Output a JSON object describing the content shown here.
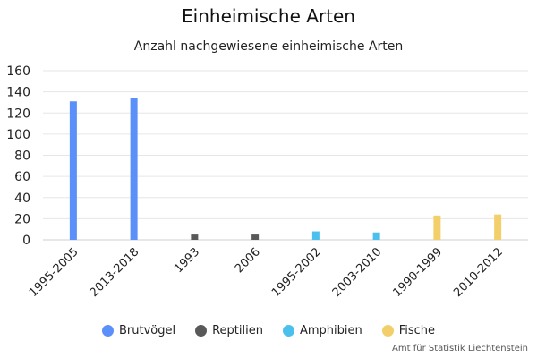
{
  "chart_data": {
    "type": "bar",
    "title": "Einheimische Arten",
    "subtitle": "Anzahl nachgewiesene einheimische Arten",
    "categories": [
      "1995-2005",
      "2013-2018",
      "1993",
      "2006",
      "1995-2002",
      "2003-2010",
      "1990-1999",
      "2010-2012"
    ],
    "ylim": [
      0,
      160
    ],
    "yticks": [
      0,
      20,
      40,
      60,
      80,
      100,
      120,
      140,
      160
    ],
    "grid": true,
    "legend_position": "bottom",
    "series": [
      {
        "name": "Brutvögel",
        "color": "#5b8ff9",
        "points": [
          {
            "category": "1995-2005",
            "value": 131
          },
          {
            "category": "2013-2018",
            "value": 134
          }
        ]
      },
      {
        "name": "Reptilien",
        "color": "#595959",
        "points": [
          {
            "category": "1993",
            "value": 5
          },
          {
            "category": "2006",
            "value": 5
          }
        ]
      },
      {
        "name": "Amphibien",
        "color": "#4bc0ed",
        "points": [
          {
            "category": "1995-2002",
            "value": 8
          },
          {
            "category": "2003-2010",
            "value": 7
          }
        ]
      },
      {
        "name": "Fische",
        "color": "#f3cf6b",
        "points": [
          {
            "category": "1990-1999",
            "value": 23
          },
          {
            "category": "2010-2012",
            "value": 24
          }
        ]
      }
    ]
  },
  "credit": "Amt für Statistik Liechtenstein"
}
